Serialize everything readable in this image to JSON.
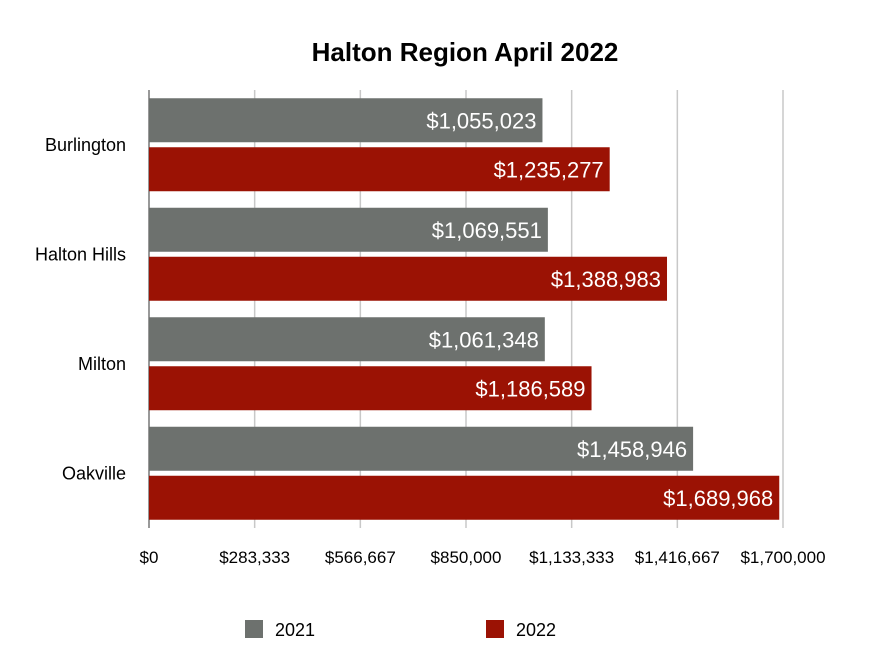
{
  "chart_data": {
    "type": "bar",
    "orientation": "horizontal",
    "title": "Halton Region April 2022",
    "categories": [
      "Burlington",
      "Halton Hills",
      "Milton",
      "Oakville"
    ],
    "series": [
      {
        "name": "2021",
        "color": "#6d716e",
        "values": [
          1055023,
          1069551,
          1061348,
          1458946
        ],
        "labels": [
          "$1,055,023",
          "$1,069,551",
          "$1,061,348",
          "$1,458,946"
        ]
      },
      {
        "name": "2022",
        "color": "#9b1204",
        "values": [
          1235277,
          1388983,
          1186589,
          1689968
        ],
        "labels": [
          "$1,235,277",
          "$1,388,983",
          "$1,186,589",
          "$1,689,968"
        ]
      }
    ],
    "xlim": [
      0,
      1700000
    ],
    "ticks": [
      0,
      283333,
      566667,
      850000,
      1133333,
      1416667,
      1700000
    ],
    "tick_labels": [
      "$0",
      "$283,333",
      "$566,667",
      "$850,000",
      "$1,133,333",
      "$1,416,667",
      "$1,700,000"
    ],
    "grid": true,
    "legend_position": "bottom"
  }
}
